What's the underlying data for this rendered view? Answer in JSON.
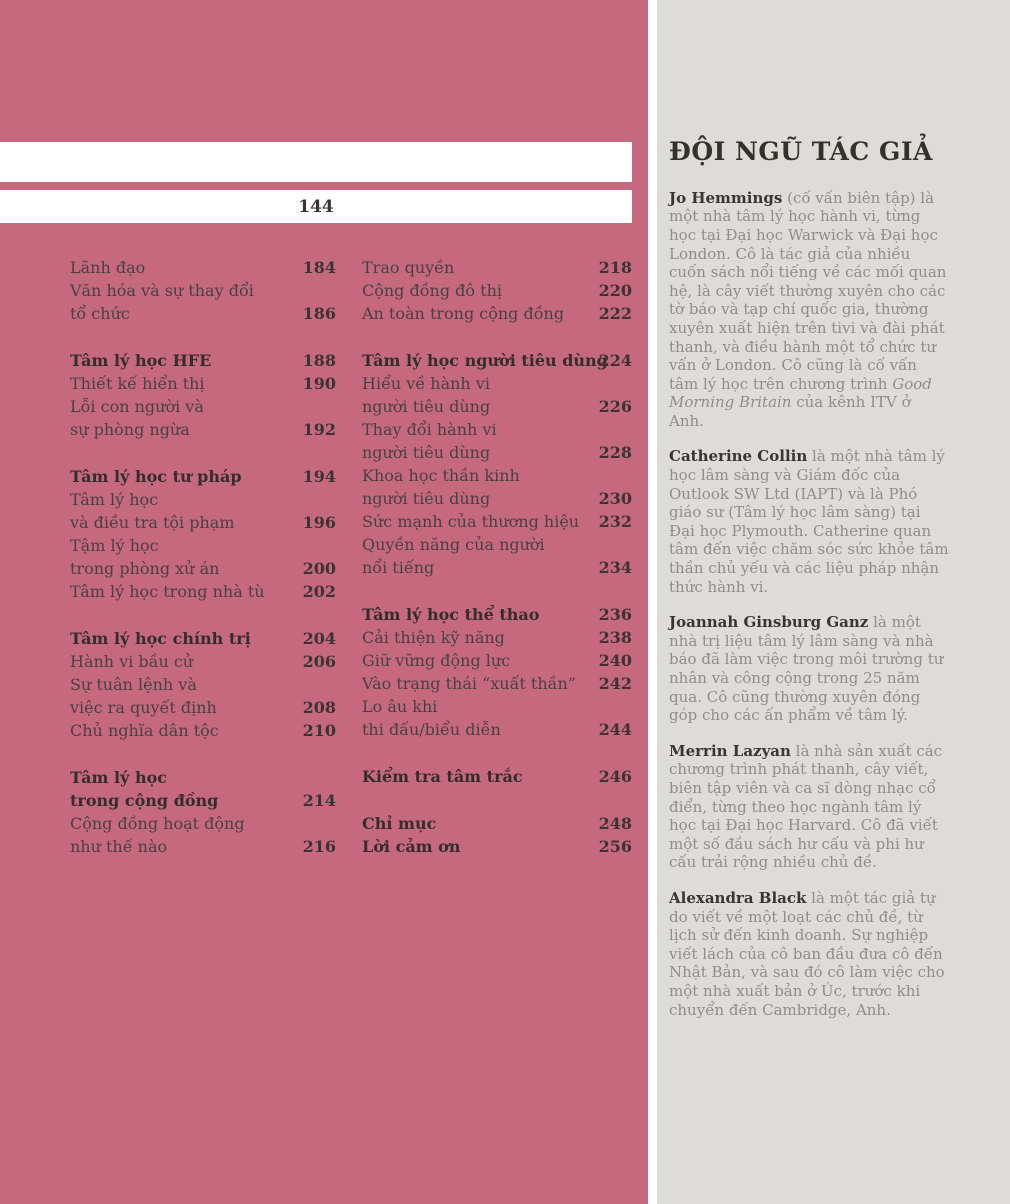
{
  "page_number": "144",
  "colors": {
    "contents_background": "#c7697e",
    "sidebar_background": "#dedcd8",
    "header_bar_background": "#ffffff",
    "toc_text": "#474140",
    "toc_bold_text": "#332e2c",
    "sidebar_body_text": "#8f8d8a",
    "sidebar_name_text": "#3a3531",
    "sidebar_title_text": "#363029"
  },
  "toc": {
    "left_column": [
      [
        {
          "lines": [
            "Lãnh đạo"
          ],
          "page": "184"
        },
        {
          "lines": [
            "Văn hóa và sự thay đổi",
            "tổ chức"
          ],
          "page": "186"
        }
      ],
      [
        {
          "lines": [
            "Tâm lý học HFE"
          ],
          "page": "188",
          "bold": true
        },
        {
          "lines": [
            "Thiết kế hiển thị"
          ],
          "page": "190"
        },
        {
          "lines": [
            "Lỗi con người và",
            "sự phòng ngừa"
          ],
          "page": "192"
        }
      ],
      [
        {
          "lines": [
            "Tâm lý học tư pháp"
          ],
          "page": "194",
          "bold": true
        },
        {
          "lines": [
            "Tâm lý học",
            "và điều tra tội phạm"
          ],
          "page": "196"
        },
        {
          "lines": [
            "Tậm lý học",
            "trong phòng xử án"
          ],
          "page": "200"
        },
        {
          "lines": [
            "Tâm lý học trong nhà tù"
          ],
          "page": "202"
        }
      ],
      [
        {
          "lines": [
            "Tâm lý học chính trị"
          ],
          "page": "204",
          "bold": true
        },
        {
          "lines": [
            "Hành vi bầu cử"
          ],
          "page": "206"
        },
        {
          "lines": [
            "Sự tuân lệnh và",
            "việc ra quyết định"
          ],
          "page": "208"
        },
        {
          "lines": [
            "Chủ nghĩa dân tộc"
          ],
          "page": "210"
        }
      ],
      [
        {
          "lines": [
            "Tâm lý học",
            "trong cộng đồng"
          ],
          "page": "214",
          "bold": true
        },
        {
          "lines": [
            "Cộng đồng hoạt động",
            "như thế nào"
          ],
          "page": "216"
        }
      ]
    ],
    "right_column": [
      [
        {
          "lines": [
            "Trao quyền"
          ],
          "page": "218"
        },
        {
          "lines": [
            "Cộng đồng đô thị"
          ],
          "page": "220"
        },
        {
          "lines": [
            "An toàn trong cộng đồng"
          ],
          "page": "222"
        }
      ],
      [
        {
          "lines": [
            "Tâm lý học người tiêu dùng"
          ],
          "page": "224",
          "bold": true
        },
        {
          "lines": [
            "Hiểu về hành vi",
            "người tiêu dùng"
          ],
          "page": "226"
        },
        {
          "lines": [
            "Thay đổi hành vi",
            "người tiêu dùng"
          ],
          "page": "228"
        },
        {
          "lines": [
            "Khoa học thần kinh",
            "người tiêu dùng"
          ],
          "page": "230"
        },
        {
          "lines": [
            "Sức mạnh của thương hiệu"
          ],
          "page": "232"
        },
        {
          "lines": [
            "Quyền năng của người",
            "nổi tiếng"
          ],
          "page": "234"
        }
      ],
      [
        {
          "lines": [
            "Tâm lý học thể thao"
          ],
          "page": "236",
          "bold": true
        },
        {
          "lines": [
            "Cải thiện kỹ năng"
          ],
          "page": "238"
        },
        {
          "lines": [
            "Giữ vững động lực"
          ],
          "page": "240"
        },
        {
          "lines": [
            "Vào trạng thái “xuất thần”"
          ],
          "page": "242"
        },
        {
          "lines": [
            "Lo âu khi",
            "thi đấu/biểu diễn"
          ],
          "page": "244"
        }
      ],
      [
        {
          "lines": [
            "Kiểm tra tâm trắc"
          ],
          "page": "246",
          "bold": true
        }
      ],
      [
        {
          "lines": [
            "Chỉ mục"
          ],
          "page": "248",
          "bold": true
        },
        {
          "lines": [
            "Lời cảm ơn"
          ],
          "page": "256",
          "bold": true
        }
      ]
    ]
  },
  "sidebar": {
    "title": "ĐỘI NGŨ TÁC GIẢ",
    "authors": [
      {
        "name": "Jo Hemmings",
        "segments": [
          {
            "text": " (cố vấn biên tập) là một nhà tâm lý học hành vi, từng học tại Đại học Warwick và Đại học London. Cô là tác giả của nhiều cuốn sách nổi tiếng về các mối quan hệ, là cây viết thường xuyên cho các tờ báo và tạp chí quốc gia, thường xuyên xuất hiện trên tivi và đài phát thanh, và điều hành một tổ chức tư vấn ở London. Cô cũng là cố vấn tâm lý học trên chương trình "
          },
          {
            "text": "Good Morning Britain",
            "italic": true
          },
          {
            "text": " của kênh ITV ở Anh."
          }
        ]
      },
      {
        "name": "Catherine Collin",
        "segments": [
          {
            "text": " là một nhà tâm lý học lâm sàng và Giám đốc của Outlook SW Ltd (IAPT) và là Phó giáo sư (Tâm lý học lâm sàng) tại Đại học Plymouth. Catherine quan tâm đến việc chăm sóc sức khỏe tâm thần chủ yếu và các liệu pháp nhận thức hành vi."
          }
        ]
      },
      {
        "name": "Joannah Ginsburg Ganz",
        "segments": [
          {
            "text": " là một nhà trị liệu tâm lý lâm sàng và nhà báo đã làm việc trong môi trường tư nhân và công cộng trong 25 năm qua. Cô cũng thường xuyên đóng góp cho các ấn phẩm về tâm lý."
          }
        ]
      },
      {
        "name": "Merrin Lazyan",
        "segments": [
          {
            "text": " là nhà sản xuất các chương trình phát thanh, cây viết, biên tập viên và ca sĩ dòng nhạc cổ điển, từng theo học ngành tâm lý học tại Đại học Harvard. Cô đã viết một số đầu sách hư cấu và phi hư cấu trải rộng nhiều chủ đề."
          }
        ]
      },
      {
        "name": "Alexandra Black",
        "segments": [
          {
            "text": " là một tác giả tự do viết về một loạt các chủ đề, từ lịch sử đến kinh doanh. Sự nghiệp viết lách của cô ban đầu đưa cô đến Nhật Bản, và sau đó cô làm việc cho một nhà xuất bản ở Úc, trước khi chuyển đến Cambridge, Anh."
          }
        ]
      }
    ]
  }
}
